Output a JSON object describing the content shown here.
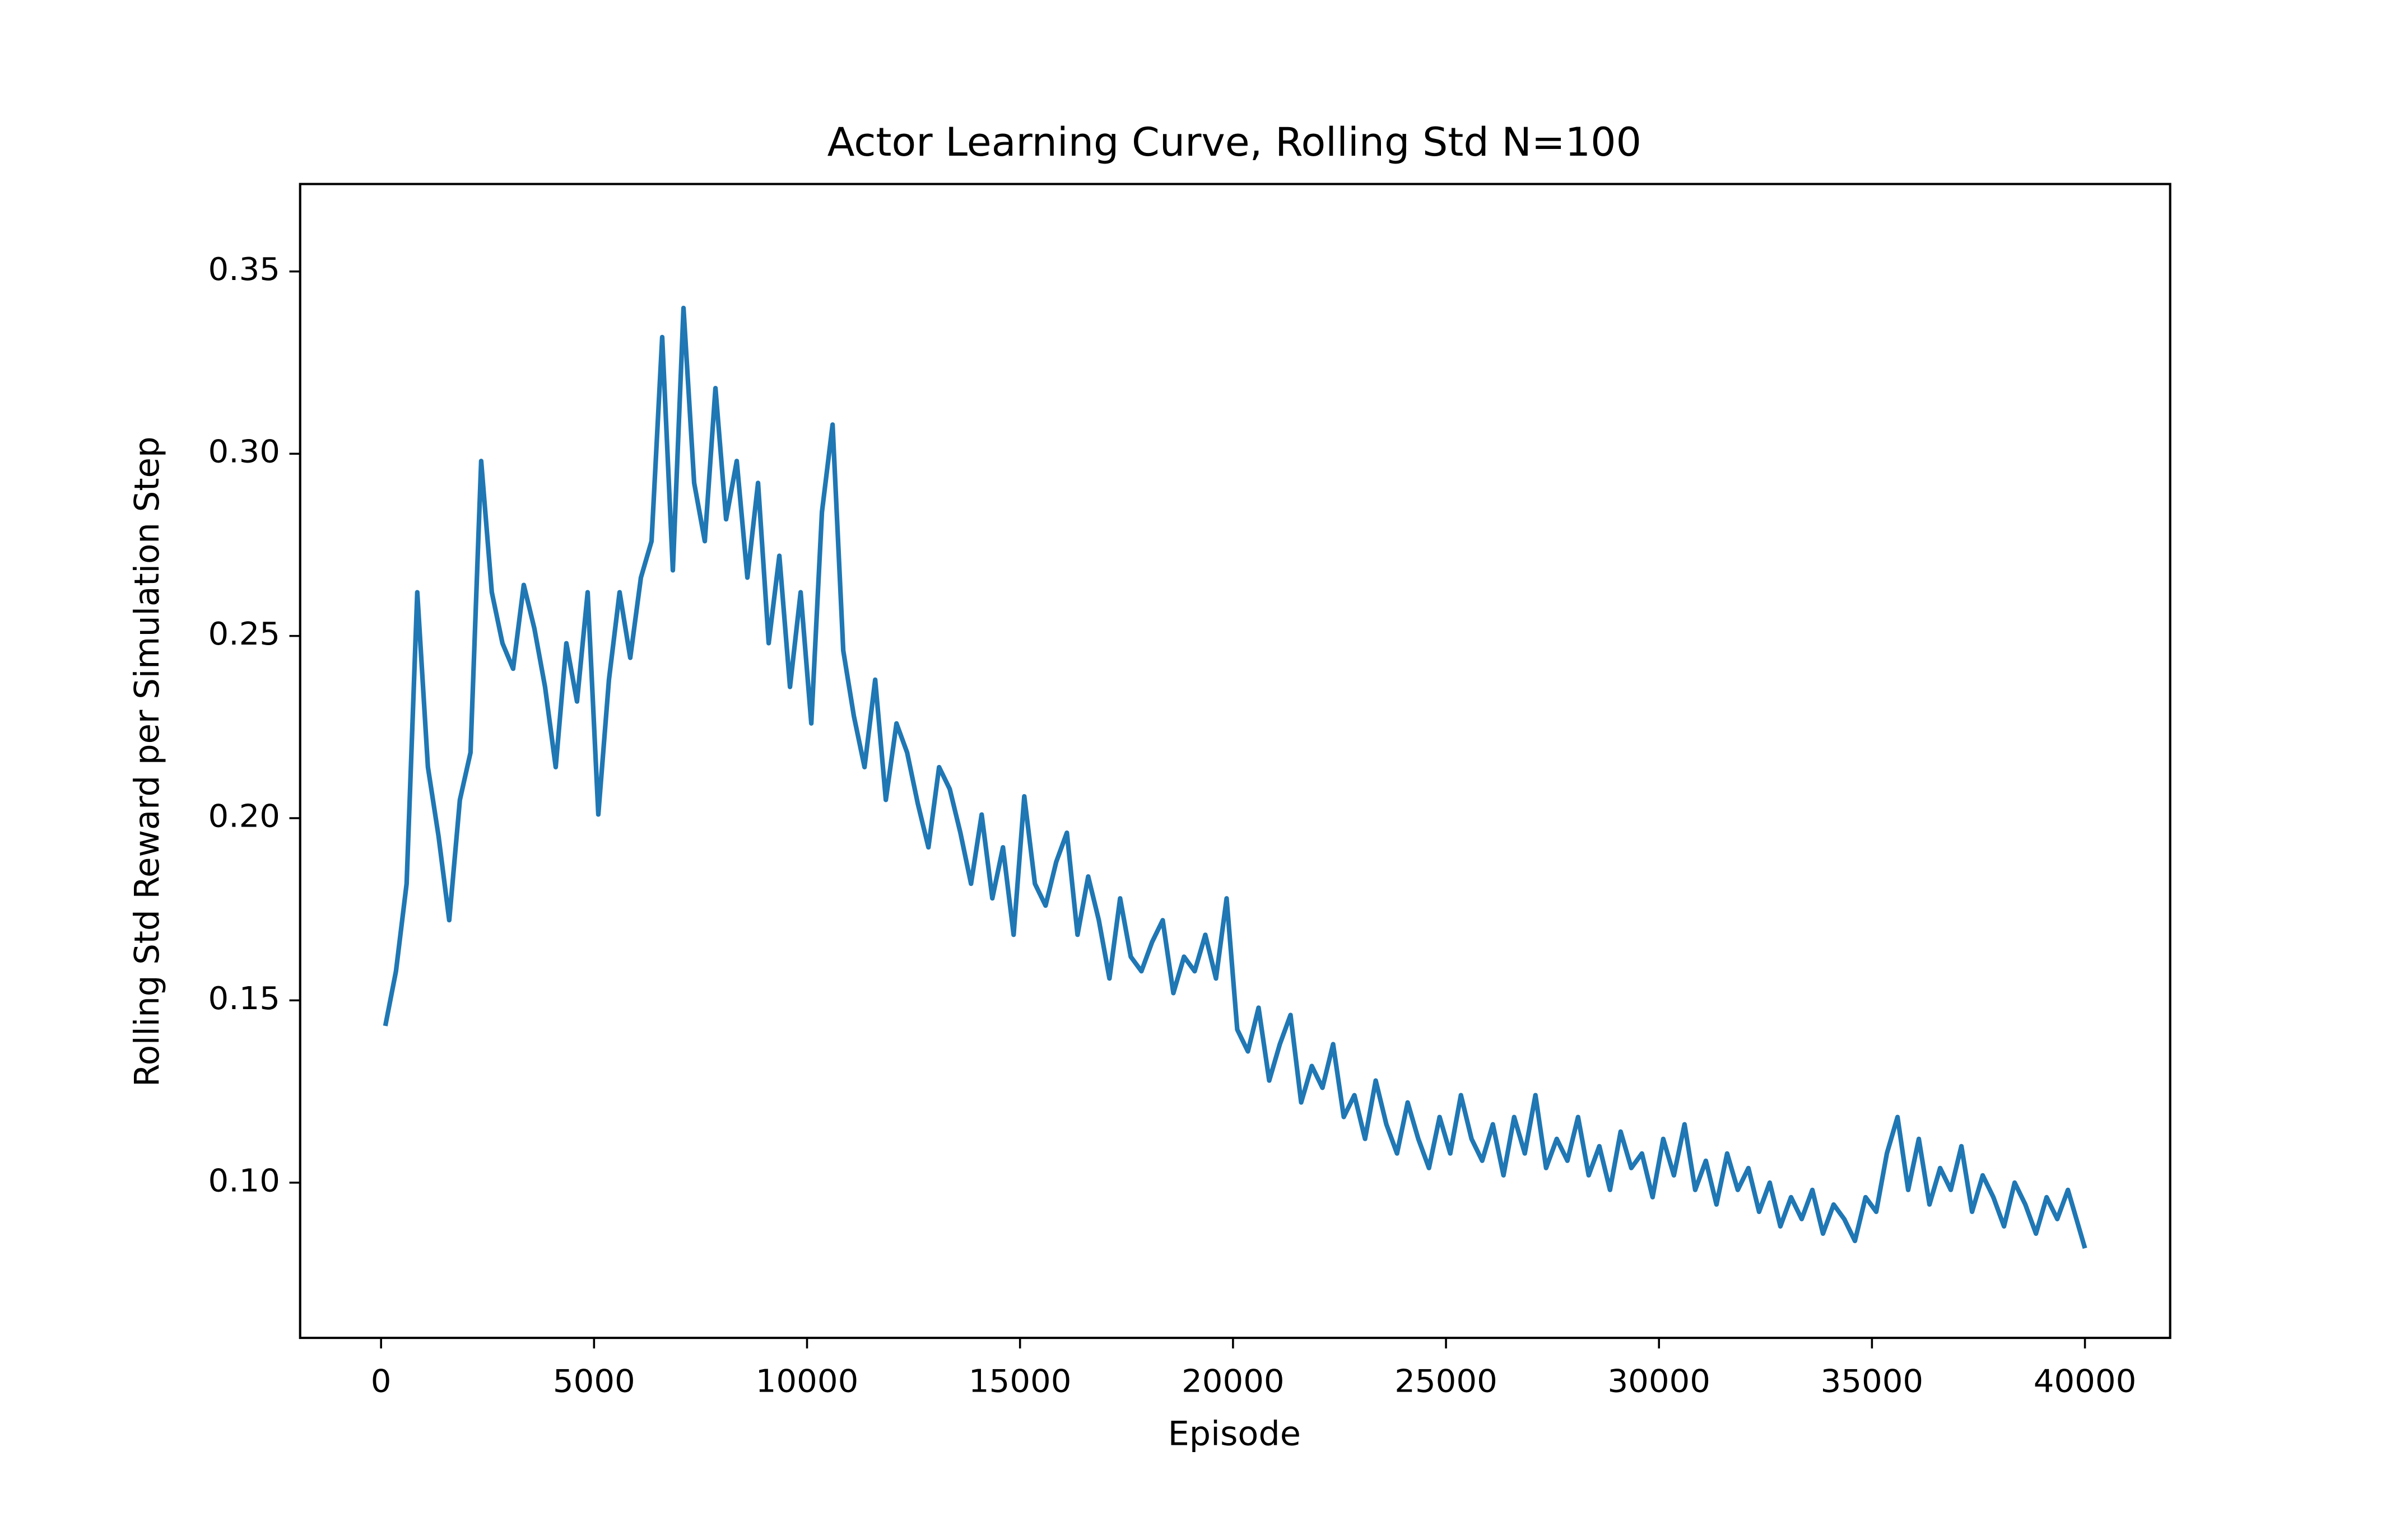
{
  "chart_data": {
    "type": "line",
    "title": "Actor Learning Curve, Rolling Std N=100",
    "x_label": "Episode",
    "y_label": "Rolling Std Reward per Simulation Step",
    "xlim": [
      -1900,
      42000
    ],
    "ylim": [
      0.0574,
      0.374
    ],
    "xticks": [
      0,
      5000,
      10000,
      15000,
      20000,
      25000,
      30000,
      35000,
      40000
    ],
    "yticks": [
      {
        "value": 0.1,
        "label": "0.10"
      },
      0.15,
      {
        "value": 0.2,
        "label": "0.20"
      },
      0.25,
      {
        "value": 0.3,
        "label": "0.30"
      },
      0.35
    ],
    "grid": false,
    "x": [
      100,
      350,
      600,
      850,
      1100,
      1350,
      1600,
      1850,
      2100,
      2350,
      2600,
      2850,
      3100,
      3350,
      3600,
      3850,
      4100,
      4350,
      4600,
      4850,
      5100,
      5350,
      5600,
      5850,
      6100,
      6350,
      6600,
      6850,
      7100,
      7350,
      7600,
      7850,
      8100,
      8350,
      8600,
      8850,
      9100,
      9350,
      9600,
      9850,
      10100,
      10350,
      10600,
      10850,
      11100,
      11350,
      11600,
      11850,
      12100,
      12350,
      12600,
      12850,
      13100,
      13350,
      13600,
      13850,
      14100,
      14350,
      14600,
      14850,
      15100,
      15350,
      15600,
      15850,
      16100,
      16350,
      16600,
      16850,
      17100,
      17350,
      17600,
      17850,
      18100,
      18350,
      18600,
      18850,
      19100,
      19350,
      19600,
      19850,
      20100,
      20350,
      20600,
      20850,
      21100,
      21350,
      21600,
      21850,
      22100,
      22350,
      22600,
      22850,
      23100,
      23350,
      23600,
      23850,
      24100,
      24350,
      24600,
      24850,
      25100,
      25350,
      25600,
      25850,
      26100,
      26350,
      26600,
      26850,
      27100,
      27350,
      27600,
      27850,
      28100,
      28350,
      28600,
      28850,
      29100,
      29350,
      29600,
      29850,
      30100,
      30350,
      30600,
      30850,
      31100,
      31350,
      31600,
      31850,
      32100,
      32350,
      32600,
      32850,
      33100,
      33350,
      33600,
      33850,
      34100,
      34350,
      34600,
      34850,
      35100,
      35350,
      35600,
      35850,
      36100,
      36350,
      36600,
      36850,
      37100,
      37350,
      37600,
      37850,
      38100,
      38350,
      38600,
      38850,
      39100,
      39350,
      39600,
      39850,
      40000
    ],
    "series": [
      {
        "color": "#1f77b4",
        "values": [
          0.143,
          0.158,
          0.182,
          0.262,
          0.214,
          0.195,
          0.172,
          0.205,
          0.218,
          0.298,
          0.262,
          0.248,
          0.241,
          0.264,
          0.252,
          0.236,
          0.214,
          0.248,
          0.232,
          0.262,
          0.201,
          0.238,
          0.262,
          0.244,
          0.266,
          0.276,
          0.332,
          0.268,
          0.34,
          0.292,
          0.276,
          0.318,
          0.282,
          0.298,
          0.266,
          0.292,
          0.248,
          0.272,
          0.236,
          0.262,
          0.226,
          0.284,
          0.308,
          0.246,
          0.228,
          0.214,
          0.238,
          0.205,
          0.226,
          0.218,
          0.204,
          0.192,
          0.214,
          0.208,
          0.196,
          0.182,
          0.201,
          0.178,
          0.192,
          0.168,
          0.206,
          0.182,
          0.176,
          0.188,
          0.196,
          0.168,
          0.184,
          0.172,
          0.156,
          0.178,
          0.162,
          0.158,
          0.166,
          0.172,
          0.152,
          0.162,
          0.158,
          0.168,
          0.156,
          0.178,
          0.142,
          0.136,
          0.148,
          0.128,
          0.138,
          0.146,
          0.122,
          0.132,
          0.126,
          0.138,
          0.118,
          0.124,
          0.112,
          0.128,
          0.116,
          0.108,
          0.122,
          0.112,
          0.104,
          0.118,
          0.108,
          0.124,
          0.112,
          0.106,
          0.116,
          0.102,
          0.118,
          0.108,
          0.124,
          0.104,
          0.112,
          0.106,
          0.118,
          0.102,
          0.11,
          0.098,
          0.114,
          0.104,
          0.108,
          0.096,
          0.112,
          0.102,
          0.116,
          0.098,
          0.106,
          0.094,
          0.108,
          0.098,
          0.104,
          0.092,
          0.1,
          0.088,
          0.096,
          0.09,
          0.098,
          0.086,
          0.094,
          0.09,
          0.084,
          0.096,
          0.092,
          0.108,
          0.118,
          0.098,
          0.112,
          0.094,
          0.104,
          0.098,
          0.11,
          0.092,
          0.102,
          0.096,
          0.088,
          0.1,
          0.094,
          0.086,
          0.096,
          0.09,
          0.098,
          0.088,
          0.082
        ]
      }
    ]
  }
}
